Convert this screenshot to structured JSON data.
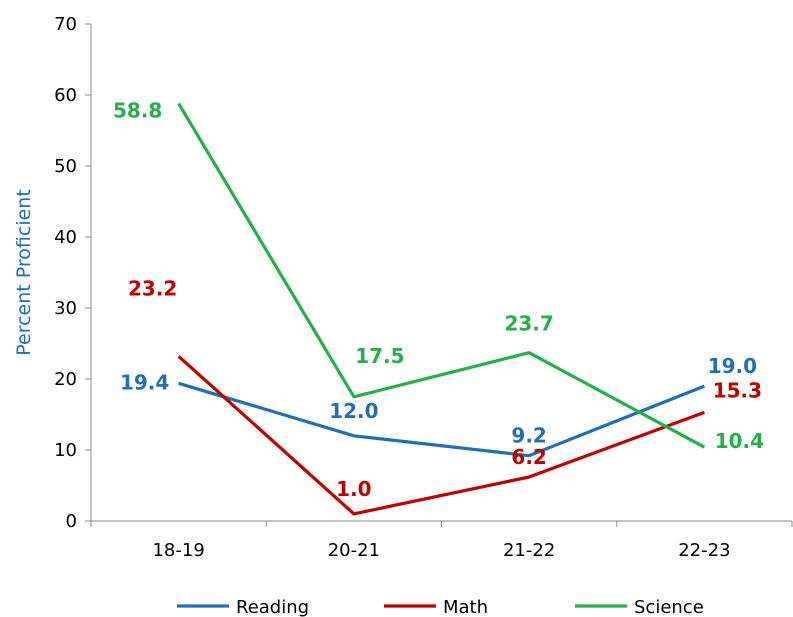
{
  "chart_data": {
    "type": "line",
    "categories": [
      "18-19",
      "20-21",
      "21-22",
      "22-23"
    ],
    "ylabel": "Percent Proficient",
    "ylim": [
      0,
      70
    ],
    "yticks": [
      0,
      10,
      20,
      30,
      40,
      50,
      60,
      70
    ],
    "grid": false,
    "legend_position": "bottom",
    "ylabel_color": "#1f6fb5",
    "series": [
      {
        "name": "Reading",
        "color": "#1f6fb5",
        "values": [
          19.4,
          12.0,
          9.2,
          19.0
        ],
        "labels": [
          "19.4",
          "12.0",
          "9.2",
          "19.0"
        ]
      },
      {
        "name": "Math",
        "color": "#c00000",
        "values": [
          23.2,
          1.0,
          6.2,
          15.3
        ],
        "labels": [
          "23.2",
          "1.0",
          "6.2",
          "15.3"
        ]
      },
      {
        "name": "Science",
        "color": "#22b04b",
        "values": [
          58.8,
          17.5,
          23.7,
          10.4
        ],
        "labels": [
          "58.8",
          "17.5",
          "23.7",
          "10.4"
        ]
      }
    ]
  }
}
